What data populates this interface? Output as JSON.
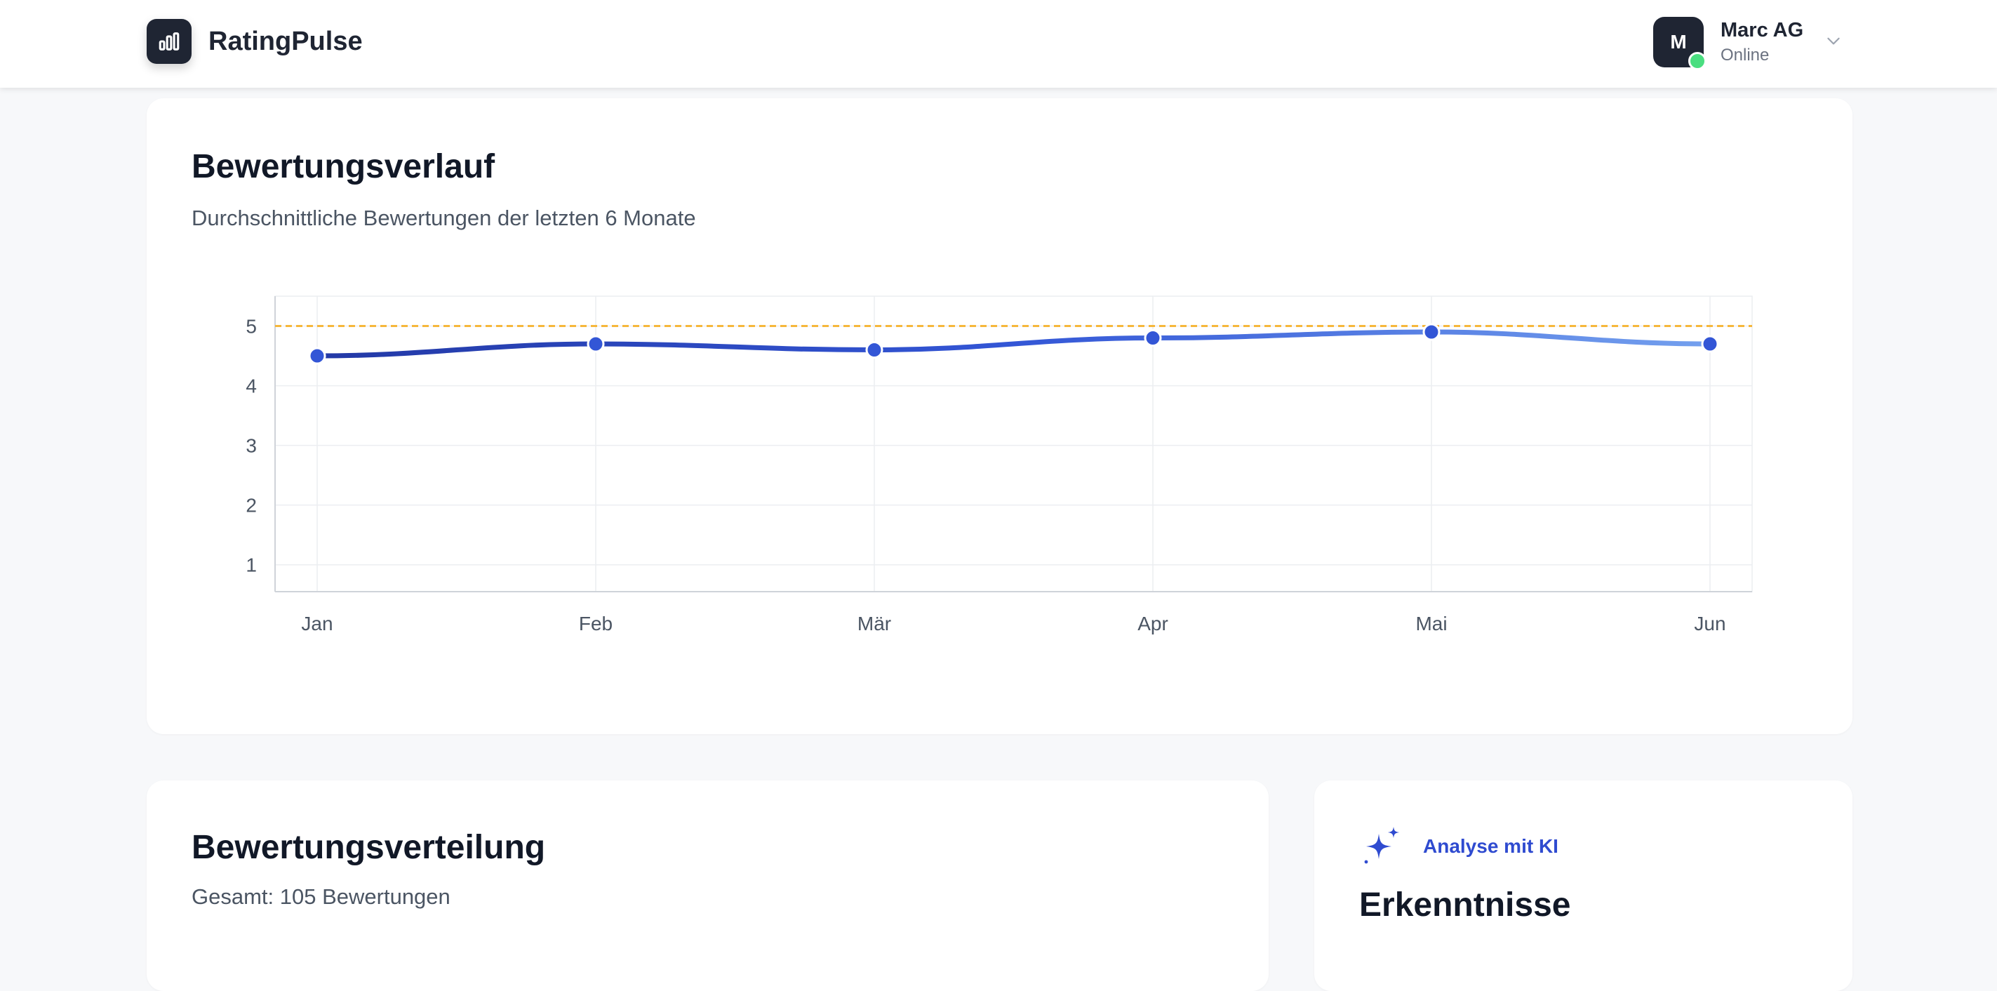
{
  "header": {
    "brand": "RatingPulse",
    "user": {
      "initial": "M",
      "name": "Marc AG",
      "status": "Online"
    }
  },
  "trend_card": {
    "title": "Bewertungsverlauf",
    "subtitle": "Durchschnittliche Bewertungen der letzten 6 Monate"
  },
  "chart_data": {
    "type": "line",
    "title": "",
    "xlabel": "",
    "ylabel": "",
    "x": [
      "Jan",
      "Feb",
      "Mär",
      "Apr",
      "Mai",
      "Jun"
    ],
    "series": [
      {
        "values": [
          4.5,
          4.7,
          4.6,
          4.8,
          4.9,
          4.7
        ],
        "color": "#3356d6"
      }
    ],
    "reference_line": {
      "value": 5,
      "color": "#f6b73c",
      "style": "dashed"
    },
    "yticks": [
      1,
      2,
      3,
      4,
      5
    ],
    "ylim": [
      0.55,
      5.5
    ],
    "grid": true
  },
  "distribution_card": {
    "title": "Bewertungsverteilung",
    "subtitle": "Gesamt: 105 Bewertungen"
  },
  "ai_card": {
    "label": "Analyse mit KI",
    "title": "Erkenntnisse",
    "icon": "sparkles-icon"
  }
}
